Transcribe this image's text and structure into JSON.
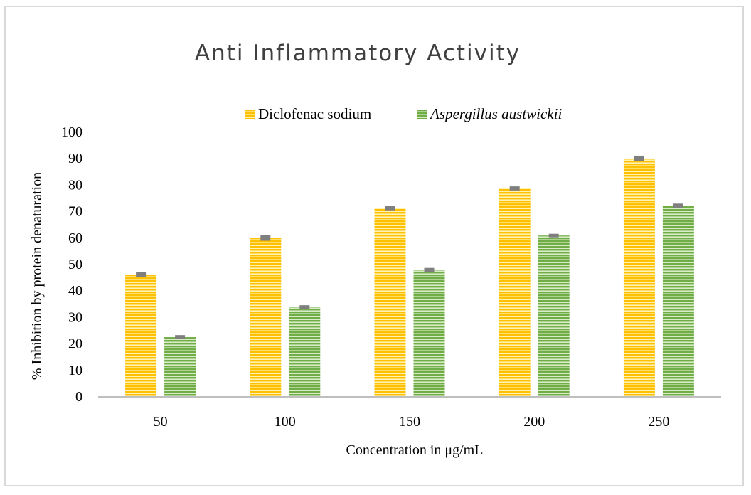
{
  "chart_data": {
    "type": "bar",
    "title": "Anti Inflammatory Activity",
    "xlabel": "Concentration in μg/mL",
    "ylabel": "% Inhibition  by protein denaturation",
    "categories": [
      "50",
      "100",
      "150",
      "200",
      "250"
    ],
    "yticks": [
      "0",
      "10",
      "20",
      "30",
      "40",
      "50",
      "60",
      "70",
      "80",
      "90",
      "100"
    ],
    "ylim": [
      0,
      100
    ],
    "legend_position": "top",
    "grid": false,
    "series": [
      {
        "name": "Diclofenac sodium",
        "italic": false,
        "color": "#ffc000",
        "stripe_color": "#fff2b3",
        "values": [
          46,
          59.8,
          71,
          78.5,
          89.8
        ],
        "errors": [
          0.6,
          0.8,
          0.5,
          0.5,
          0.8
        ]
      },
      {
        "name": "Aspergillus austwickii",
        "italic": true,
        "color": "#70ad47",
        "stripe_color": "#d8ecc8",
        "values": [
          22.3,
          33.6,
          47.7,
          60.7,
          72
        ],
        "errors": [
          0.5,
          0.5,
          0.5,
          0.4,
          0.5
        ]
      }
    ]
  }
}
